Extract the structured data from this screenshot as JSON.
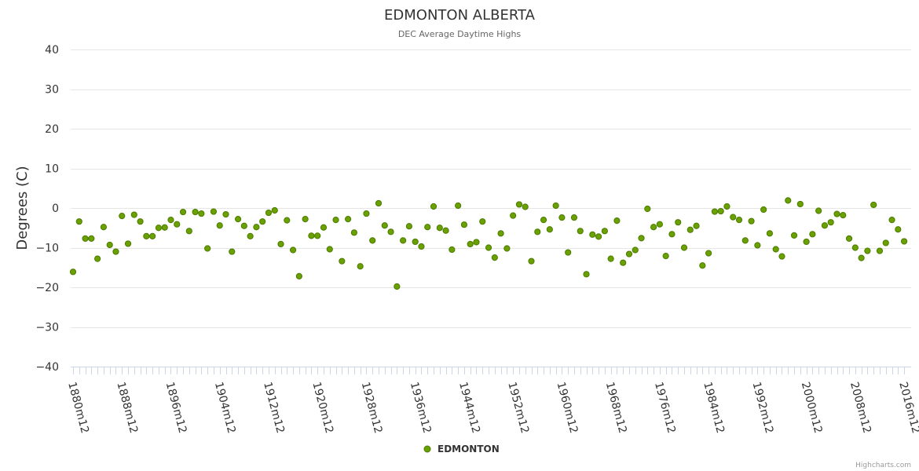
{
  "chart_data": {
    "type": "scatter",
    "title": "EDMONTON ALBERTA",
    "subtitle": "DEC Average Daytime Highs",
    "ylabel": "Degrees (C)",
    "xlabel": "",
    "ylim": [
      -40,
      40
    ],
    "yticks": [
      40,
      30,
      20,
      10,
      0,
      -10,
      -20,
      -30,
      -40
    ],
    "ytick_labels": [
      "40",
      "30",
      "20",
      "10",
      "0",
      "−10",
      "−20",
      "−30",
      "−40"
    ],
    "x_start_year": 1880,
    "x_end_year": 2016,
    "xtick_labels": [
      "1880m12",
      "1888m12",
      "1896m12",
      "1904m12",
      "1912m12",
      "1920m12",
      "1928m12",
      "1936m12",
      "1944m12",
      "1952m12",
      "1960m12",
      "1968m12",
      "1976m12",
      "1984m12",
      "1992m12",
      "2000m12",
      "2008m12",
      "2016m12"
    ],
    "series": [
      {
        "name": "EDMONTON",
        "color": "#6aa100",
        "values": [
          -16.1,
          -3.4,
          -7.7,
          -7.7,
          -12.8,
          -4.8,
          -9.3,
          -11.0,
          -2.0,
          -9.0,
          -1.7,
          -3.4,
          -7.1,
          -7.1,
          -5.0,
          -4.9,
          -3.0,
          -4.1,
          -1.0,
          -5.8,
          -1.0,
          -1.4,
          -10.2,
          -0.9,
          -4.4,
          -1.6,
          -11.0,
          -2.8,
          -4.5,
          -7.1,
          -4.8,
          -3.4,
          -1.2,
          -0.6,
          -9.1,
          -3.1,
          -10.6,
          -17.2,
          -2.8,
          -7.0,
          -7.0,
          -4.9,
          -10.4,
          -3.0,
          -13.4,
          -2.8,
          -6.2,
          -14.7,
          -1.4,
          -8.2,
          1.2,
          -4.4,
          -6.0,
          -19.8,
          -8.2,
          -4.6,
          -8.5,
          -9.7,
          -4.8,
          0.4,
          -5.0,
          -5.7,
          -10.5,
          0.6,
          -4.2,
          -9.1,
          -8.6,
          -3.4,
          -10.0,
          -12.5,
          -6.4,
          -10.2,
          -1.9,
          0.9,
          0.3,
          -13.4,
          -6.0,
          -3.0,
          -5.4,
          0.6,
          -2.4,
          -11.2,
          -2.4,
          -5.8,
          -16.7,
          -6.7,
          -7.2,
          -5.8,
          -12.8,
          -3.2,
          -13.8,
          -11.6,
          -10.6,
          -7.6,
          -0.2,
          -4.8,
          -4.1,
          -12.1,
          -6.6,
          -3.6,
          -10.0,
          -5.5,
          -4.5,
          -14.5,
          -11.4,
          -0.9,
          -0.8,
          0.4,
          -2.3,
          -3.0,
          -8.2,
          -3.3,
          -9.4,
          -0.4,
          -6.4,
          -10.4,
          -12.2,
          1.9,
          -6.9,
          1.0,
          -8.5,
          -6.6,
          -0.7,
          -4.4,
          -3.6,
          -1.5,
          -1.8,
          -7.7,
          -10.0,
          -12.6,
          -10.8,
          0.8,
          -10.8,
          -8.8,
          -3.0,
          -5.4,
          -8.4
        ]
      }
    ],
    "legend": "bottom-center"
  },
  "credits": "Highcharts.com"
}
